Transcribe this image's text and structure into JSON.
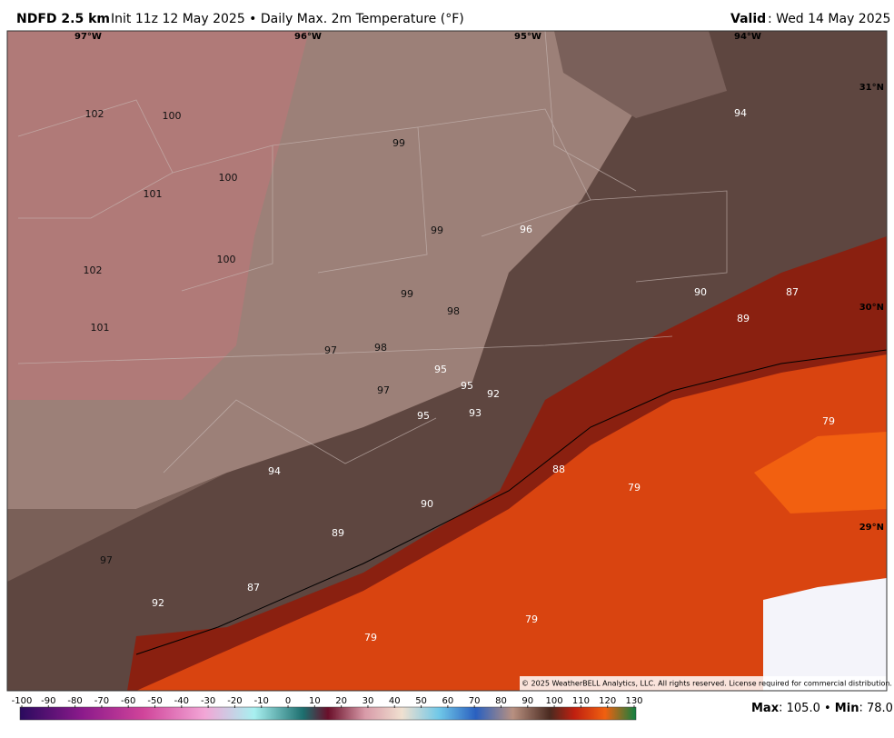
{
  "header": {
    "product": "NDFD 2.5 km",
    "description": "Init 11z 12 May 2025 • Daily Max. 2m Temperature (°F)",
    "valid_label": "Valid",
    "valid_date": ": Wed 14 May 2025"
  },
  "longitudes": [
    "97°W",
    "96°W",
    "95°W",
    "94°W"
  ],
  "latitudes": [
    "31°N",
    "30°N",
    "29°N"
  ],
  "map_labels": [
    102,
    100,
    99,
    94,
    100,
    101,
    99,
    96,
    100,
    102,
    99,
    98,
    90,
    87,
    89,
    101,
    97,
    98,
    95,
    95,
    92,
    97,
    95,
    93,
    79,
    88,
    94,
    79,
    90,
    89,
    97,
    87,
    92,
    79,
    79
  ],
  "copyright": "© 2025 WeatherBELL Analytics, LLC. All rights reserved. License required for commercial distribution.",
  "colorbar_ticks": [
    -100,
    -90,
    -80,
    -70,
    -60,
    -50,
    -40,
    -30,
    -20,
    -10,
    0,
    10,
    20,
    30,
    40,
    50,
    60,
    70,
    80,
    90,
    100,
    110,
    120,
    130
  ],
  "stats": {
    "max_label": "Max",
    "max": "105.0",
    "separator": "•",
    "min_label": "Min",
    "min": "78.0"
  }
}
